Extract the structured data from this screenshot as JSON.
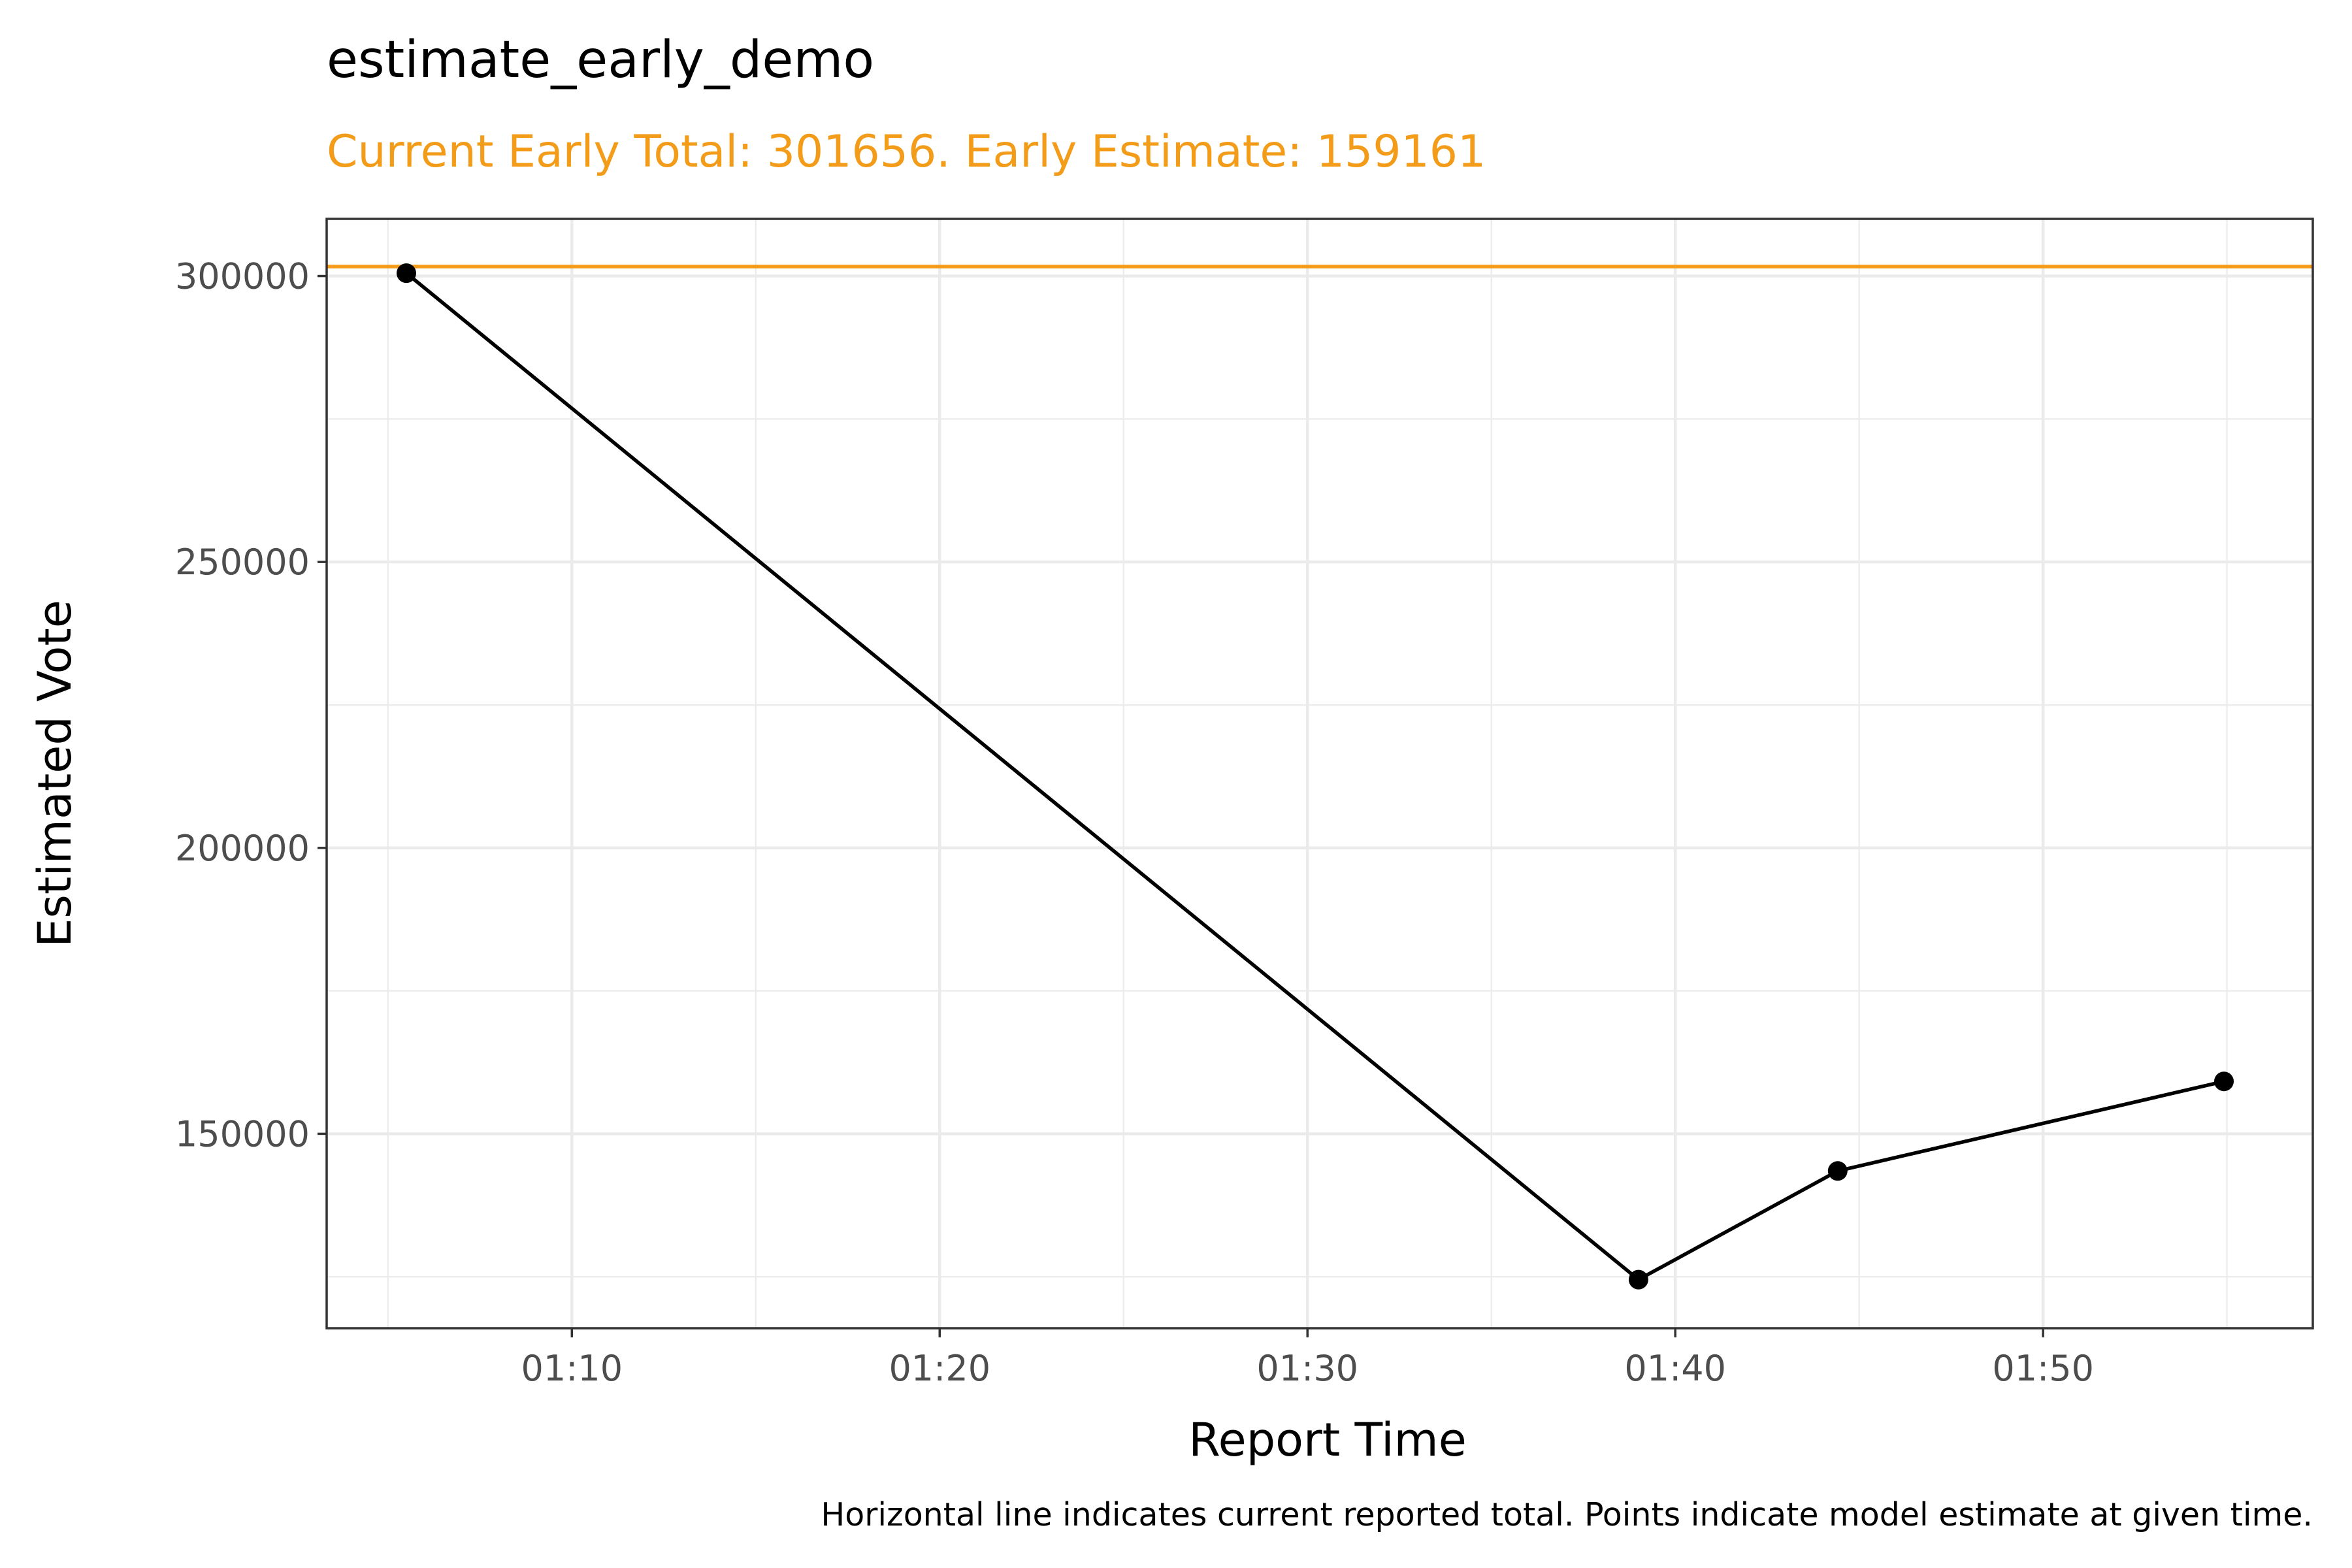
{
  "chart_data": {
    "type": "line",
    "title": "estimate_early_demo",
    "subtitle": "Current Early Total: 301656. Early Estimate: 159161",
    "xlabel": "Report Time",
    "ylabel": "Estimated Vote",
    "caption": "Horizontal line indicates current reported total. Points indicate model estimate at given time.",
    "x_ticks": [
      "01:10",
      "01:20",
      "01:30",
      "01:40",
      "01:50"
    ],
    "y_ticks": [
      "150000",
      "200000",
      "250000",
      "300000"
    ],
    "xlim": [
      "01:03:20",
      "01:57:20"
    ],
    "ylim": [
      116000,
      310000
    ],
    "grid": true,
    "series": [
      {
        "x": [
          "01:05:30",
          "01:39:00",
          "01:44:25",
          "01:54:55"
        ],
        "y": [
          300500,
          124500,
          143500,
          159161
        ],
        "color": "#000000"
      }
    ],
    "reference_line": {
      "y": 301656,
      "color": "#F39C1A"
    }
  }
}
